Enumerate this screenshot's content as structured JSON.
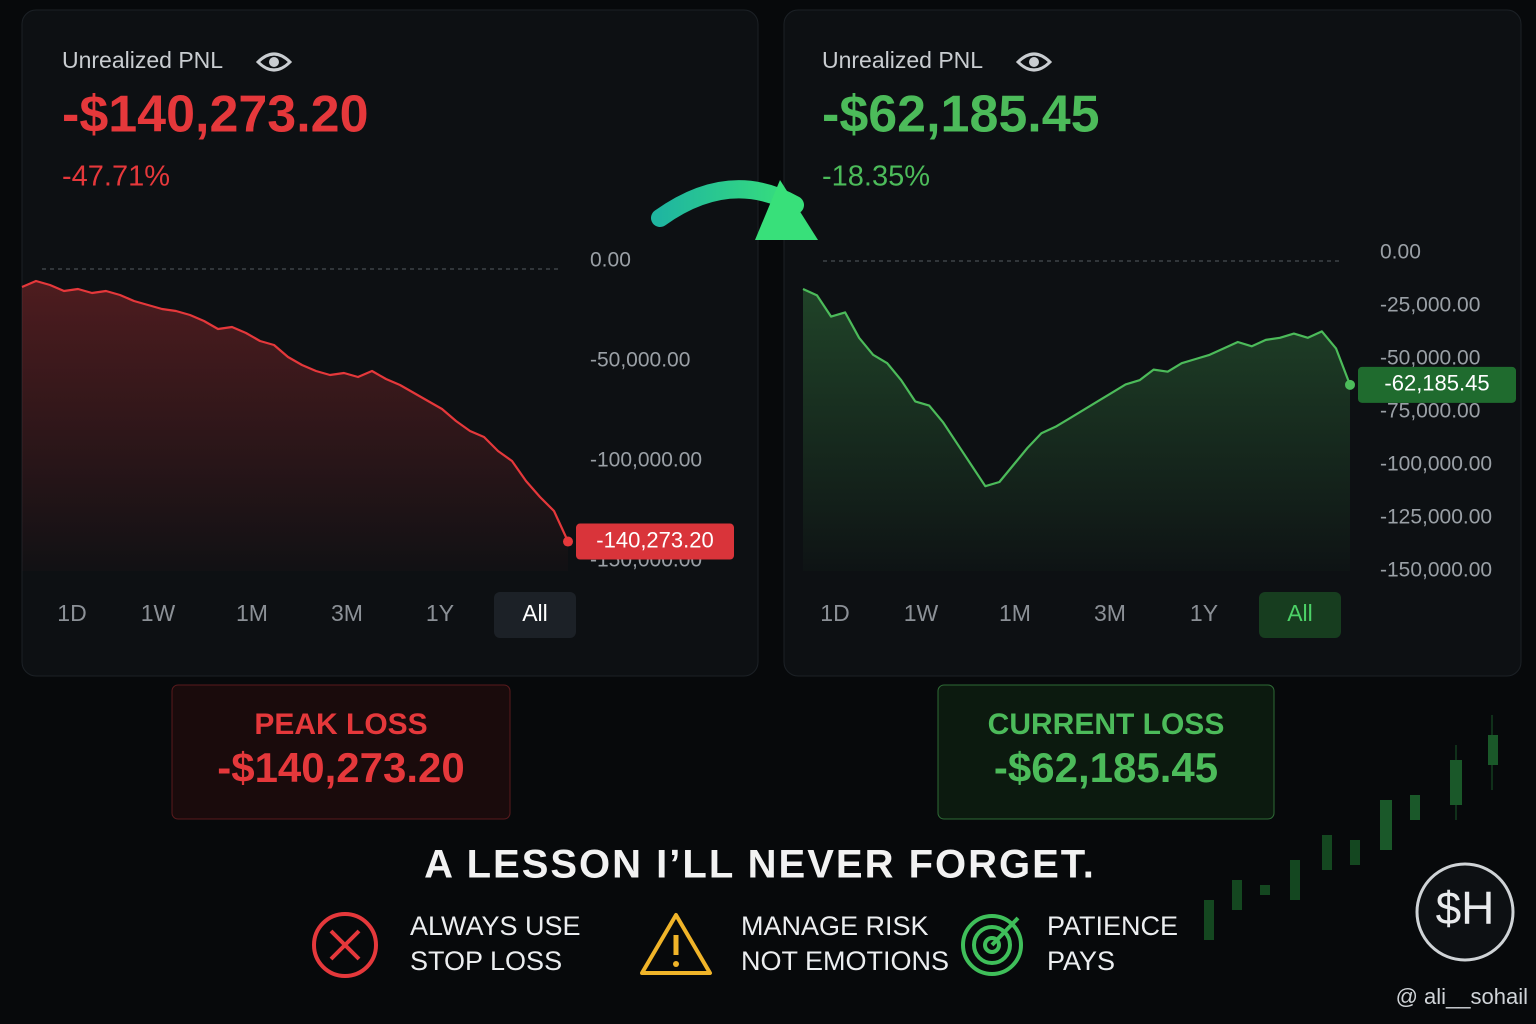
{
  "chart_data": [
    {
      "type": "line",
      "title": "Unrealized PNL",
      "value_text": "-$140,273.20",
      "change_text": "-47.71%",
      "color": "#e5383b",
      "values": [
        -13000,
        -10000,
        -12000,
        -15000,
        -14000,
        -16000,
        -15000,
        -17000,
        -20000,
        -22000,
        -24000,
        -25000,
        -27000,
        -30000,
        -34000,
        -33000,
        -36000,
        -40000,
        -42000,
        -48000,
        -52000,
        -55000,
        -57000,
        -56000,
        -58000,
        -55000,
        -59000,
        -62000,
        -66000,
        -70000,
        -74000,
        -80000,
        -85000,
        -88000,
        -95000,
        -100000,
        -110000,
        -118000,
        -125000,
        -140273.2
      ],
      "value_labels": [
        null,
        null,
        null,
        null,
        null,
        null,
        null,
        null,
        null,
        null,
        null,
        null,
        null,
        null,
        null,
        null,
        null,
        null,
        null,
        null,
        null,
        null,
        null,
        null,
        null,
        null,
        null,
        null,
        null,
        null,
        null,
        null,
        null,
        null,
        null,
        null,
        null,
        null,
        null,
        "-140,273.20"
      ],
      "ylim": [
        -155000,
        0
      ],
      "yticks": [
        {
          "value": 0,
          "label": "0.00"
        },
        {
          "value": -50000,
          "label": "-50,000.00"
        },
        {
          "value": -100000,
          "label": "-100,000.00"
        },
        {
          "value": -150000,
          "label": "-150,000.00"
        }
      ],
      "time_ranges": [
        "1D",
        "1W",
        "1M",
        "3M",
        "1Y",
        "All"
      ],
      "active_range_index": 5
    },
    {
      "type": "line",
      "title": "Unrealized PNL",
      "value_text": "-$62,185.45",
      "change_text": "-18.35%",
      "color": "#4cbb5a",
      "values": [
        -17000,
        -20000,
        -30000,
        -28000,
        -40000,
        -48000,
        -52000,
        -60000,
        -70000,
        -72000,
        -80000,
        -90000,
        -100000,
        -110000,
        -108000,
        -100000,
        -92000,
        -85000,
        -82000,
        -78000,
        -74000,
        -70000,
        -66000,
        -62000,
        -60000,
        -55000,
        -56000,
        -52000,
        -50000,
        -48000,
        -45000,
        -42000,
        -44000,
        -41000,
        -40000,
        -38000,
        -40000,
        -37000,
        -45000,
        -62185.45
      ],
      "value_labels": [
        null,
        null,
        null,
        null,
        null,
        null,
        null,
        null,
        null,
        null,
        null,
        null,
        null,
        null,
        null,
        null,
        null,
        null,
        null,
        null,
        null,
        null,
        null,
        null,
        null,
        null,
        null,
        null,
        null,
        null,
        null,
        null,
        null,
        null,
        null,
        null,
        null,
        null,
        null,
        "-62,185.45"
      ],
      "ylim": [
        -150000,
        0
      ],
      "yticks": [
        {
          "value": 0,
          "label": "0.00"
        },
        {
          "value": -25000,
          "label": "-25,000.00"
        },
        {
          "value": -50000,
          "label": "-50,000.00"
        },
        {
          "value": -75000,
          "label": "-75,000.00"
        },
        {
          "value": -100000,
          "label": "-100,000.00"
        },
        {
          "value": -125000,
          "label": "-125,000.00"
        },
        {
          "value": -150000,
          "label": "-150,000.00"
        }
      ],
      "time_ranges": [
        "1D",
        "1W",
        "1M",
        "3M",
        "1Y",
        "All"
      ],
      "active_range_index": 5
    }
  ],
  "summary": [
    {
      "label": "PEAK LOSS",
      "value": "-$140,273.20"
    },
    {
      "label": "CURRENT LOSS",
      "value": "-$62,185.45"
    }
  ],
  "lesson": {
    "title": "A LESSON I’LL NEVER FORGET.",
    "tips": [
      {
        "lines": [
          "ALWAYS USE",
          "STOP LOSS"
        ]
      },
      {
        "lines": [
          "MANAGE RISK",
          "NOT EMOTIONS"
        ]
      },
      {
        "lines": [
          "PATIENCE",
          "PAYS"
        ]
      }
    ]
  },
  "logo": "$H",
  "watermark": "@ ali__sohail"
}
